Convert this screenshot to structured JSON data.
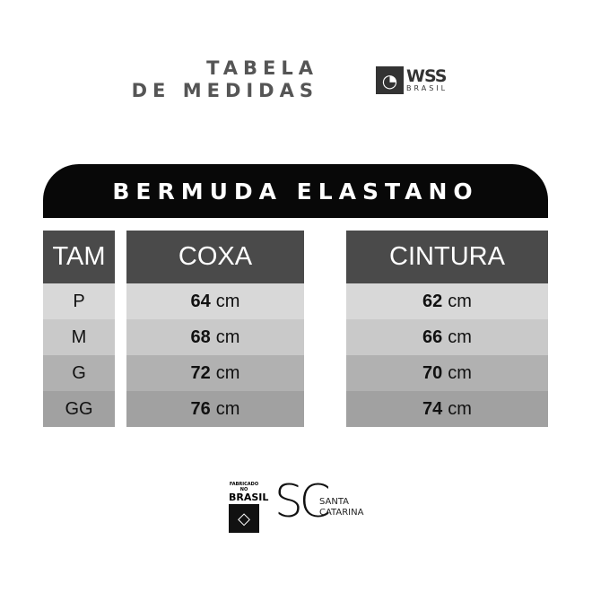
{
  "header": {
    "title_line1": "TABELA",
    "title_line2": "DE MEDIDAS",
    "brand": "WSS",
    "brand_sub": "BRASIL"
  },
  "banner": "BERMUDA ELASTANO",
  "table": {
    "headers": [
      "TAM",
      "COXA",
      "CINTURA"
    ],
    "unit": "cm",
    "rows": [
      {
        "size": "P",
        "coxa": "64",
        "cintura": "62"
      },
      {
        "size": "M",
        "coxa": "68",
        "cintura": "66"
      },
      {
        "size": "G",
        "coxa": "72",
        "cintura": "70"
      },
      {
        "size": "GG",
        "coxa": "76",
        "cintura": "74"
      }
    ]
  },
  "footer": {
    "made_in_small": "FABRICADO NO",
    "made_in": "BRASIL",
    "sc": "SC",
    "sc_line1": "SANTA",
    "sc_line2": "CATARINA"
  }
}
